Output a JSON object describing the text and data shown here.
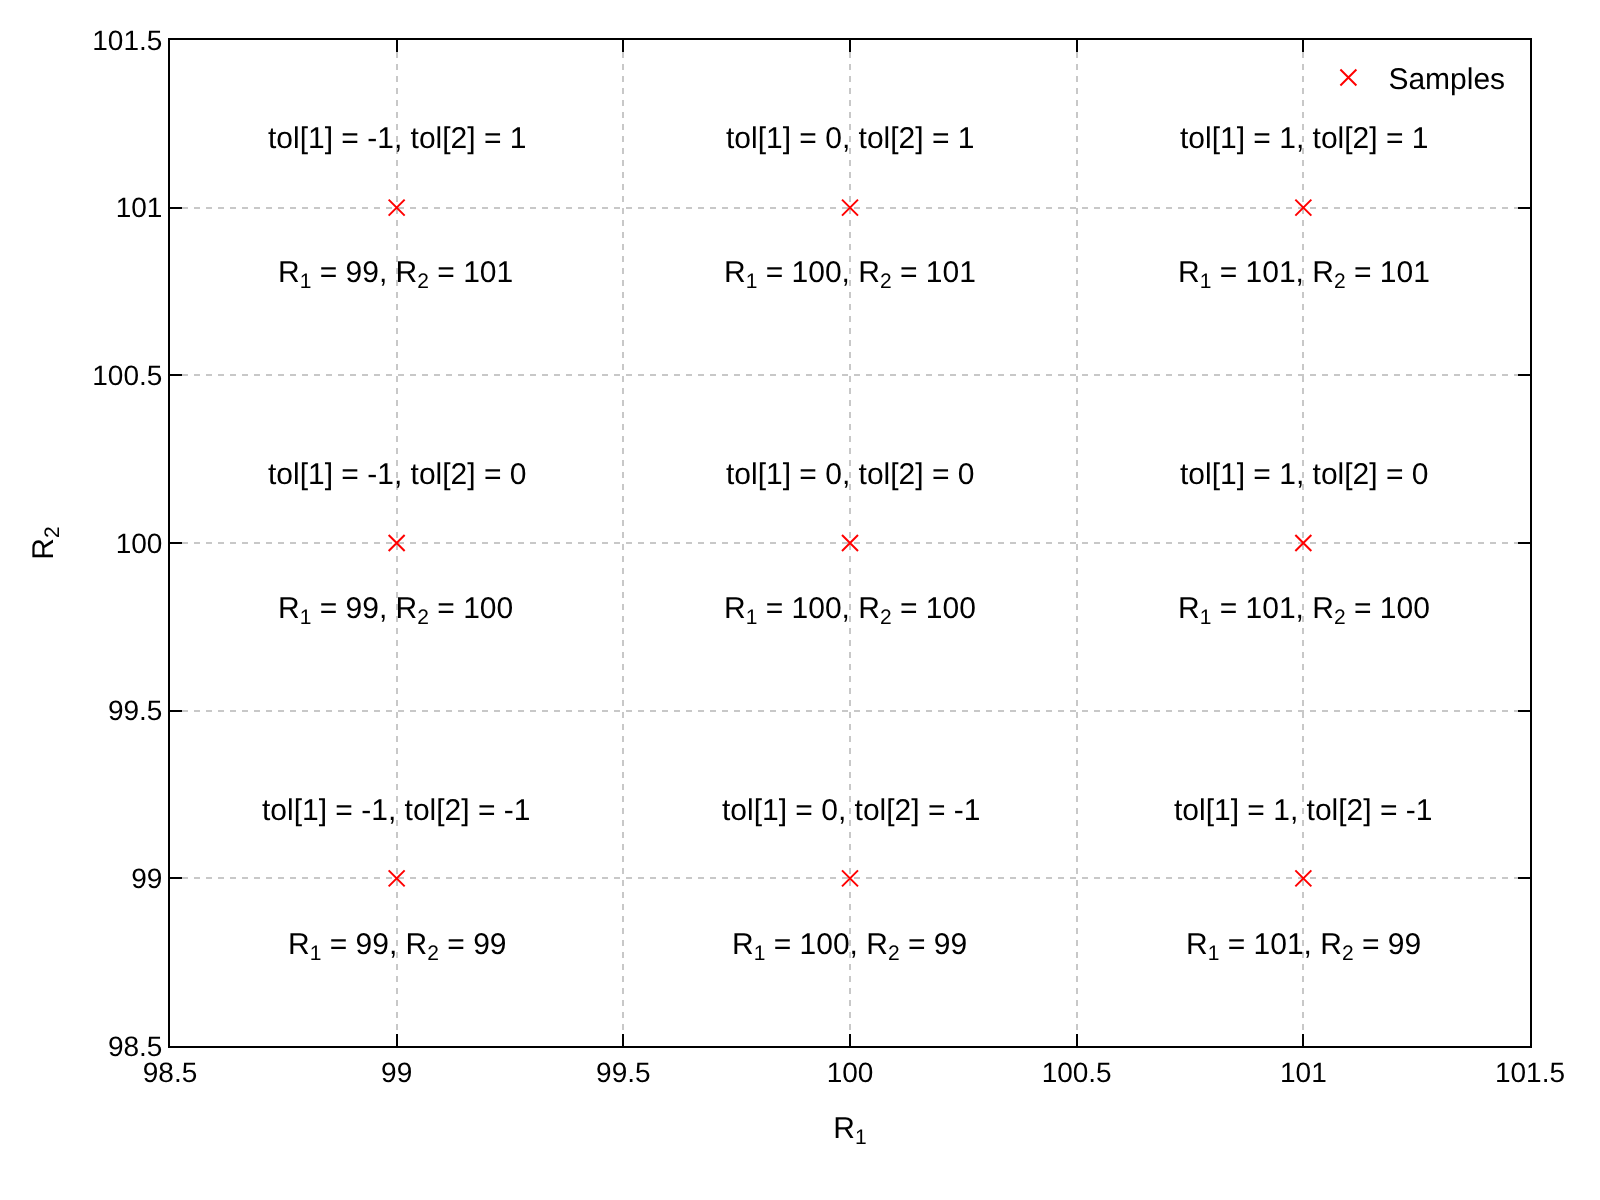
{
  "chart_data": {
    "type": "scatter",
    "xlabel": "R$_{1}$",
    "ylabel": "R$_{2}$",
    "series": [
      {
        "name": "Samples",
        "color": "#ff0000",
        "x": [
          99,
          100,
          101,
          99,
          100,
          101,
          99,
          100,
          101
        ],
        "values": [
          101,
          101,
          101,
          100,
          100,
          100,
          99,
          99,
          99
        ]
      }
    ],
    "xlim": [
      98.5,
      101.5
    ],
    "xticks": [
      98.5,
      99,
      99.5,
      100,
      100.5,
      101,
      101.5
    ],
    "ylim": [
      98.5,
      101.5
    ],
    "yticks": [
      98.5,
      99,
      99.5,
      100,
      100.5,
      101,
      101.5
    ],
    "grid": true,
    "legend": "top right",
    "marker": "cross",
    "annotations": [
      {
        "text": "tol[1] = -1, tol[2] = 1",
        "x": 99,
        "y": 101
      },
      {
        "text": "R$_{1}$ = 99, R$_{2}$ = 101",
        "x": 99,
        "y": 101
      },
      {
        "text": "tol[1] = 0, tol[2] = 1",
        "x": 100,
        "y": 101
      },
      {
        "text": "R$_{1}$ = 100, R$_{2}$ = 101",
        "x": 100,
        "y": 101
      },
      {
        "text": "tol[1] = 1, tol[2] = 1",
        "x": 101,
        "y": 101
      },
      {
        "text": "R$_{1}$ = 101, R$_{2}$ = 101",
        "x": 101,
        "y": 101
      },
      {
        "text": "tol[1] = -1, tol[2] = 0",
        "x": 99,
        "y": 100
      },
      {
        "text": "R$_{1}$ = 99, R$_{2}$ = 100",
        "x": 99,
        "y": 100
      },
      {
        "text": "tol[1] = 0, tol[2] = 0",
        "x": 100,
        "y": 100
      },
      {
        "text": "R$_{1}$ = 100, R$_{2}$ = 100",
        "x": 100,
        "y": 100
      },
      {
        "text": "tol[1] = 1, tol[2] = 0",
        "x": 101,
        "y": 100
      },
      {
        "text": "R$_{1}$ = 101, R$_{2}$ = 100",
        "x": 101,
        "y": 100
      },
      {
        "text": "tol[1] = -1, tol[2] = -1",
        "x": 99,
        "y": 99
      },
      {
        "text": "R$_{1}$ = 99, R$_{2}$ = 99",
        "x": 99,
        "y": 99
      },
      {
        "text": "tol[1] = 0, tol[2] = -1",
        "x": 100,
        "y": 99
      },
      {
        "text": "R$_{1}$ = 100, R$_{2}$ = 99",
        "x": 100,
        "y": 99
      },
      {
        "text": "tol[1] = 1, tol[2] = -1",
        "x": 101,
        "y": 99
      },
      {
        "text": "R$_{1}$ = 101, R$_{2}$ = 99",
        "x": 101,
        "y": 99
      }
    ]
  }
}
